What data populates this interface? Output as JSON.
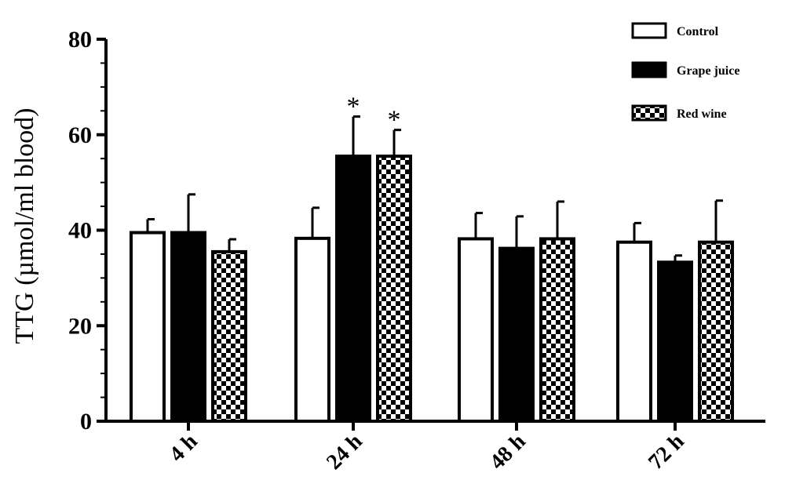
{
  "chart_data": {
    "type": "bar",
    "ylabel": "TTG (µmol/ml blood)",
    "xlabel": "",
    "title": "",
    "ylim": [
      0,
      80
    ],
    "yticks": [
      0,
      20,
      40,
      60,
      80
    ],
    "y_minor_step": 5,
    "categories": [
      "4 h",
      "24 h",
      "48 h",
      "72 h"
    ],
    "series": [
      {
        "name": "Control",
        "fill": "white",
        "values": [
          39.5,
          38.3,
          38.2,
          37.5
        ],
        "errors": [
          2.8,
          6.4,
          5.4,
          4.0
        ],
        "significance": [
          "",
          "",
          "",
          ""
        ]
      },
      {
        "name": "Grape juice",
        "fill": "black",
        "values": [
          39.5,
          55.5,
          36.2,
          33.3
        ],
        "errors": [
          8.0,
          8.3,
          6.7,
          1.4
        ],
        "significance": [
          "",
          "*",
          "",
          ""
        ]
      },
      {
        "name": "Red wine",
        "fill": "checkered",
        "values": [
          35.5,
          55.5,
          38.2,
          37.5
        ],
        "errors": [
          2.6,
          5.5,
          7.8,
          8.7
        ],
        "significance": [
          "",
          "*",
          "",
          ""
        ]
      }
    ],
    "legend_position": "top-right",
    "colors": {
      "axis": "#000000",
      "bar_stroke": "#000000",
      "control": "#ffffff",
      "grape_juice": "#000000",
      "checker_light": "#ffffff",
      "checker_dark": "#000000"
    }
  }
}
